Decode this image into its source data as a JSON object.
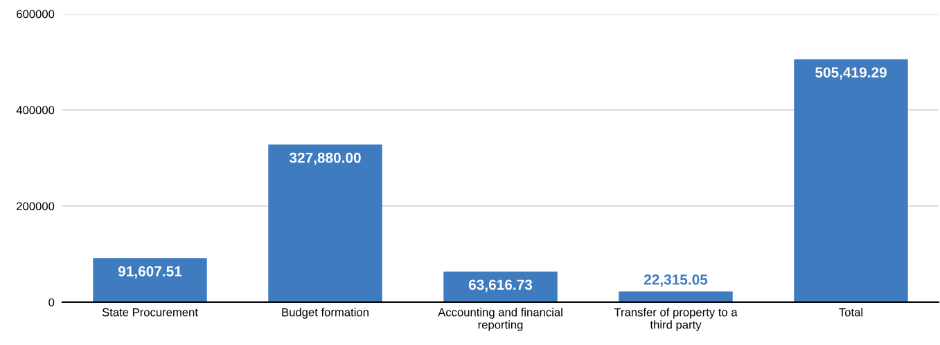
{
  "chart_data": {
    "type": "bar",
    "categories": [
      "State Procurement",
      "Budget formation",
      "Accounting and financial\nreporting",
      "Transfer of property to a\nthird party",
      "Total"
    ],
    "values": [
      91607.51,
      327880.0,
      63616.73,
      22315.05,
      505419.29
    ],
    "value_labels": [
      "91,607.51",
      "327,880.00",
      "63,616.73",
      "22,315.05",
      "505,419.29"
    ],
    "color": "#3f7bbf",
    "ylim": [
      0,
      600000
    ],
    "yticks": [
      0,
      200000,
      400000,
      600000
    ],
    "grid": "y",
    "legend": false
  }
}
